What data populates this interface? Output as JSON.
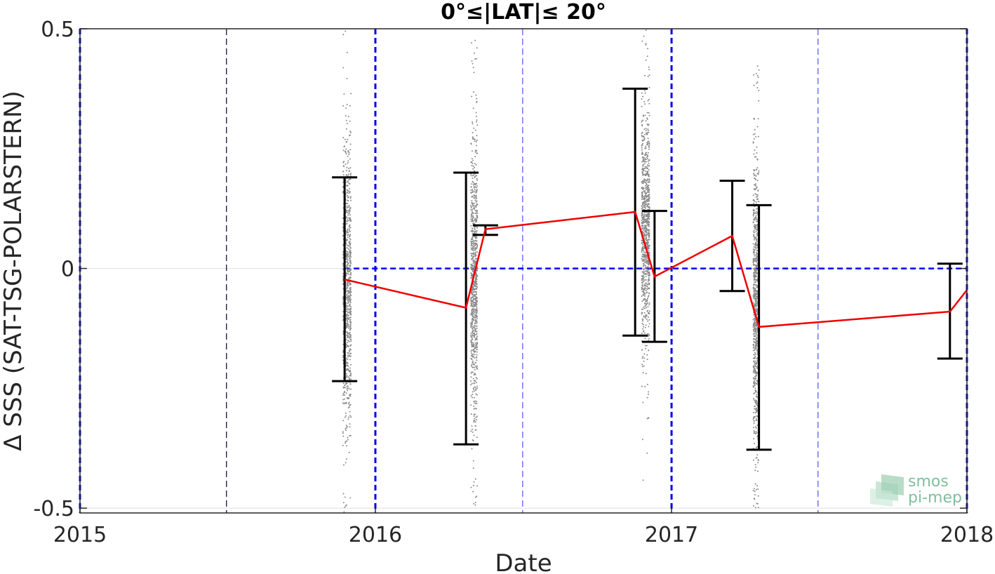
{
  "chart_data": {
    "type": "scatter",
    "title": "0°≤|LAT|≤ 20°",
    "xlabel": "Date",
    "ylabel": "Δ SSS (SAT-TSG-POLARSTERN)",
    "xlim": [
      "2015-01-01",
      "2018-01-01"
    ],
    "ylim": [
      -0.51,
      0.5
    ],
    "x_ticks": [
      "2015",
      "2016",
      "2017",
      "2018"
    ],
    "y_ticks": [
      {
        "value": -0.5,
        "label": "-0.5"
      },
      {
        "value": 0,
        "label": "0"
      },
      {
        "value": 0.5,
        "label": "0.5"
      }
    ],
    "grid": true,
    "year_lines": [
      "2015-01-01",
      "2016-01-01",
      "2017-01-01",
      "2018-01-01"
    ],
    "halfyear_lines": [
      "2015-07-01",
      "2016-07-01",
      "2017-07-01"
    ],
    "zero_line": {
      "x_start": "2015-11-24",
      "x_end": "2018-01-01",
      "y": 0
    },
    "mean_series": {
      "dates": [
        "2015-11-24",
        "2016-04-22",
        "2016-05-16",
        "2016-11-17",
        "2016-12-11",
        "2017-03-17",
        "2017-04-19",
        "2017-12-11",
        "2018-01-01"
      ],
      "values": [
        -0.023,
        -0.082,
        0.082,
        0.118,
        -0.017,
        0.068,
        -0.122,
        -0.09,
        -0.045
      ]
    },
    "error_bars": [
      {
        "date": "2015-11-24",
        "low": -0.235,
        "high": 0.19
      },
      {
        "date": "2016-04-22",
        "low": -0.367,
        "high": 0.2
      },
      {
        "date": "2016-05-16",
        "low": 0.07,
        "high": 0.09
      },
      {
        "date": "2016-11-17",
        "low": -0.14,
        "high": 0.375
      },
      {
        "date": "2016-12-11",
        "low": -0.153,
        "high": 0.12
      },
      {
        "date": "2017-03-17",
        "low": -0.047,
        "high": 0.183
      },
      {
        "date": "2017-04-19",
        "low": -0.378,
        "high": 0.132
      },
      {
        "date": "2017-12-11",
        "low": -0.188,
        "high": 0.01
      }
    ],
    "scatter_clusters": [
      {
        "start": "2015-11-22",
        "end": "2015-12-02",
        "center": -0.03,
        "spread": 0.19,
        "min": -0.51,
        "max": 0.5
      },
      {
        "start": "2016-04-28",
        "end": "2016-05-06",
        "center": -0.02,
        "spread": 0.17,
        "min": -0.5,
        "max": 0.48
      },
      {
        "start": "2016-11-25",
        "end": "2016-12-05",
        "center": 0.09,
        "spread": 0.15,
        "min": -0.46,
        "max": 0.5
      },
      {
        "start": "2017-04-12",
        "end": "2017-04-19",
        "center": -0.07,
        "spread": 0.19,
        "min": -0.5,
        "max": 0.43
      }
    ],
    "colors": {
      "mean_line": "#ee0000",
      "zero_line": "#0000ff",
      "year_lines": "#0000ee",
      "halfyear_lines": "#4f4fff",
      "first_halfyear_line": "#000033",
      "scatter": "#8a8a8a",
      "error_bars": "#000000",
      "grid": "#dfdfdf"
    }
  },
  "logo": {
    "line1": "smos",
    "line2": "pi-mep",
    "color": "#7fbf9c"
  }
}
